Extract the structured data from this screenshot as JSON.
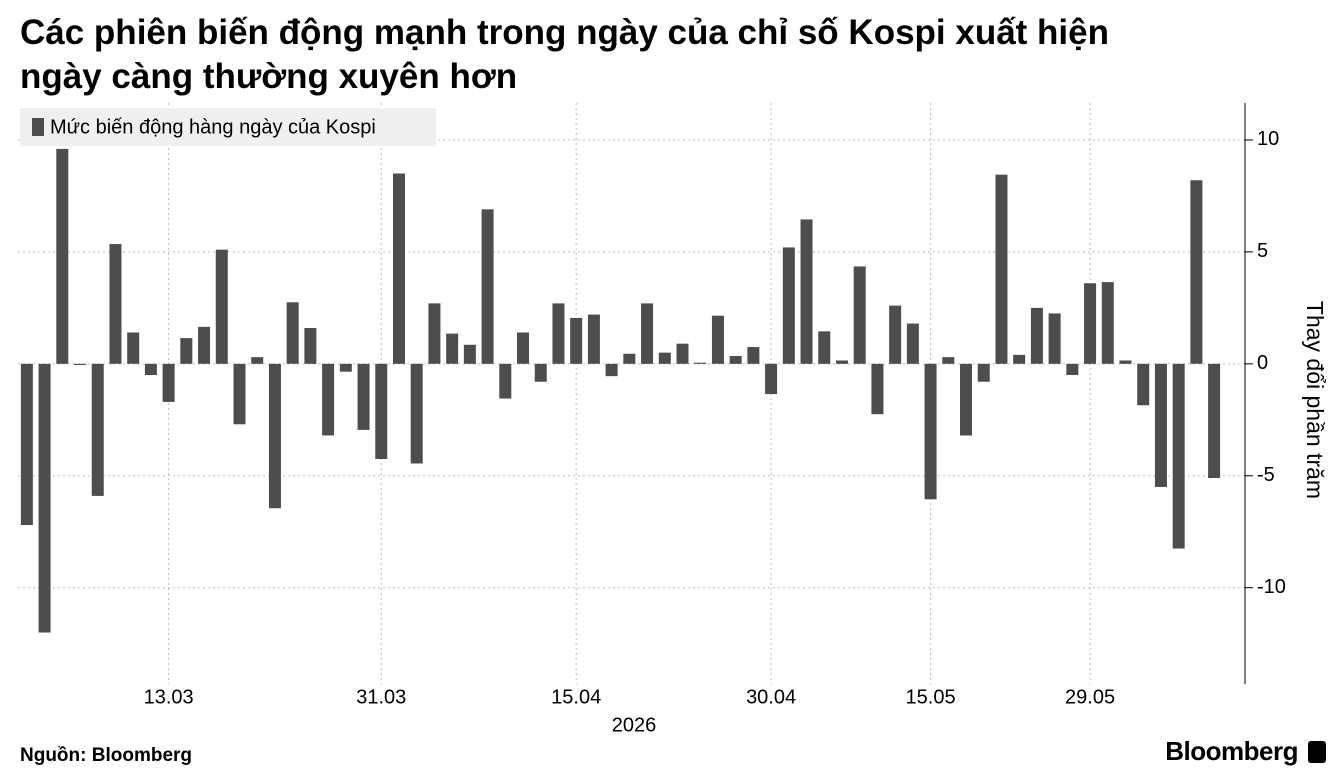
{
  "chart_data": {
    "type": "bar",
    "title": "Các phiên biến động mạnh trong ngày của chỉ số Kospi xuất hiện ngày càng thường xuyên hơn",
    "title_lines": [
      "Các phiên biến động mạnh trong ngày của chỉ số Kospi xuất hiện",
      "ngày càng thường xuyên hơn"
    ],
    "y_axis_label": "Thay đổi phần trăm",
    "x_axis_year": "2026",
    "source": "Nguồn: Bloomberg",
    "brand": "Bloomberg",
    "categories": [
      null,
      null,
      null,
      null,
      null,
      null,
      null,
      null,
      "13.03",
      null,
      null,
      null,
      null,
      null,
      null,
      null,
      null,
      null,
      null,
      null,
      "31.03",
      null,
      null,
      null,
      null,
      null,
      null,
      null,
      null,
      null,
      null,
      "15.04",
      null,
      null,
      null,
      null,
      null,
      null,
      null,
      null,
      null,
      null,
      "30.04",
      null,
      null,
      null,
      null,
      null,
      null,
      null,
      null,
      "15.05",
      null,
      null,
      null,
      null,
      null,
      null,
      null,
      null,
      "29.05",
      null,
      null,
      null,
      null,
      null,
      null,
      null
    ],
    "series": [
      {
        "name": "Mức biến động hàng ngày của Kospi",
        "color": "#4d4d4d",
        "values": [
          -7.2,
          -12.0,
          9.6,
          -0.05,
          -5.9,
          5.35,
          1.4,
          -0.5,
          -1.7,
          1.15,
          1.65,
          5.1,
          -2.7,
          0.3,
          -6.45,
          2.75,
          1.6,
          -3.2,
          -0.35,
          -2.95,
          -4.25,
          8.5,
          -4.45,
          2.7,
          1.35,
          0.85,
          6.9,
          -1.55,
          1.4,
          -0.8,
          2.7,
          2.05,
          2.2,
          -0.55,
          0.45,
          2.7,
          0.5,
          0.9,
          0.05,
          2.15,
          0.35,
          0.75,
          -1.35,
          5.2,
          6.45,
          1.45,
          0.15,
          4.35,
          -2.25,
          2.6,
          1.8,
          -6.05,
          0.3,
          -3.2,
          -0.8,
          8.45,
          0.4,
          2.5,
          2.25,
          -0.5,
          3.6,
          3.65,
          0.15,
          -1.85,
          -5.5,
          -8.25,
          8.2,
          -5.1
        ]
      }
    ],
    "ylim": [
      -14.3,
      11.65
    ],
    "yticks": [
      -10,
      -5,
      0,
      5,
      10
    ],
    "grid": true,
    "legend": "top-left"
  }
}
